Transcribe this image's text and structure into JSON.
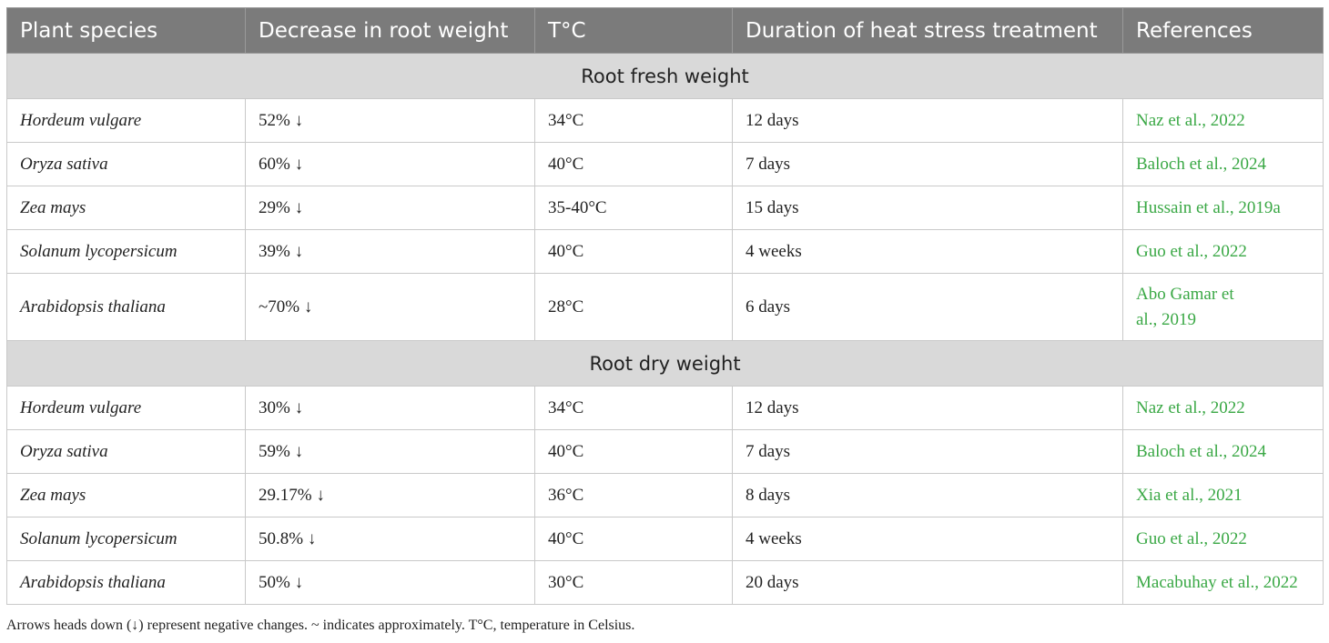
{
  "table": {
    "header": [
      "Plant species",
      "Decrease in root weight",
      "T°C",
      "Duration of heat stress treatment",
      "References"
    ],
    "sections": [
      {
        "title": "Root fresh weight",
        "rows": [
          [
            "Hordeum vulgare",
            "52% ↓",
            "34°C",
            "12 days",
            "Naz et al., 2022"
          ],
          [
            "Oryza sativa",
            "60% ↓",
            "40°C",
            "7 days",
            "Baloch et al., 2024"
          ],
          [
            "Zea mays",
            "29% ↓",
            "35-40°C",
            "15 days",
            "Hussain et al., 2019a"
          ],
          [
            "Solanum lycopersicum",
            "39% ↓",
            "40°C",
            "4 weeks",
            "Guo et al., 2022"
          ],
          [
            "Arabidopsis thaliana",
            "~70% ↓",
            "28°C",
            "6 days",
            "Abo Gamar et al., 2019"
          ]
        ]
      },
      {
        "title": "Root dry weight",
        "rows": [
          [
            "Hordeum vulgare",
            "30% ↓",
            "34°C",
            "12 days",
            "Naz et al., 2022"
          ],
          [
            "Oryza sativa",
            "59% ↓",
            "40°C",
            "7 days",
            "Baloch et al., 2024"
          ],
          [
            "Zea mays",
            "29.17% ↓",
            "36°C",
            "8 days",
            "Xia et al., 2021"
          ],
          [
            "Solanum lycopersicum",
            "50.8% ↓",
            "40°C",
            "4 weeks",
            "Guo et al., 2022"
          ],
          [
            "Arabidopsis thaliana",
            "50% ↓",
            "30°C",
            "20 days",
            "Macabuhay et al., 2022"
          ]
        ]
      }
    ]
  },
  "footnote": "Arrows heads down (↓) represent negative changes. ~ indicates approximately. T°C, temperature in Celsius."
}
